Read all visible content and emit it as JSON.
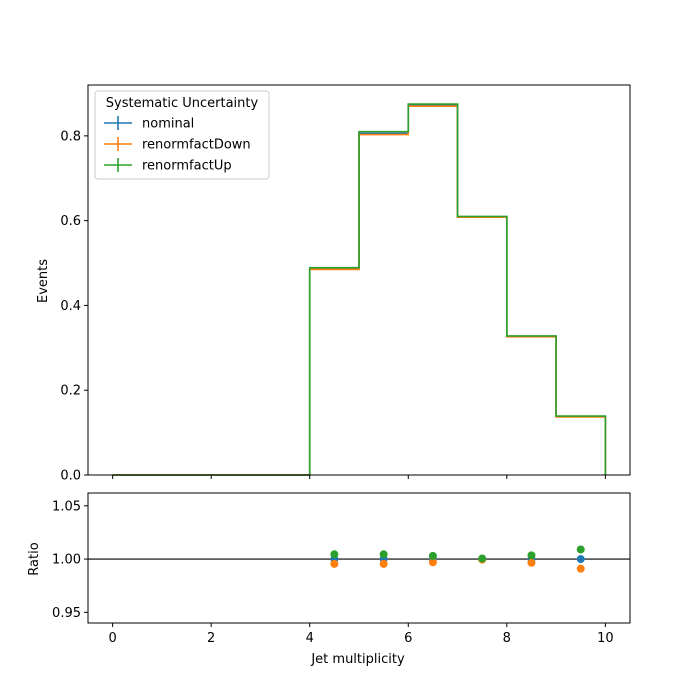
{
  "chart_data": [
    {
      "type": "line",
      "drawstyle": "steps-post",
      "bin_edges": [
        0,
        1,
        2,
        3,
        4,
        5,
        6,
        7,
        8,
        9,
        10
      ],
      "series": [
        {
          "name": "nominal",
          "color": "#1f77b4",
          "values": [
            0,
            0,
            0,
            0,
            0.487,
            0.806,
            0.872,
            0.609,
            0.327,
            0.138
          ]
        },
        {
          "name": "renormfactDown",
          "color": "#ff7f0e",
          "values": [
            0,
            0,
            0,
            0,
            0.485,
            0.803,
            0.87,
            0.608,
            0.326,
            0.137
          ]
        },
        {
          "name": "renormfactUp",
          "color": "#2ca02c",
          "values": [
            0,
            0,
            0,
            0,
            0.489,
            0.81,
            0.875,
            0.61,
            0.328,
            0.139
          ]
        }
      ],
      "ylabel": "Events",
      "xlim": [
        -0.5,
        10.5
      ],
      "ylim": [
        0,
        0.92
      ],
      "yticks": [
        "0.0",
        "0.2",
        "0.4",
        "0.6",
        "0.8"
      ],
      "legend": {
        "title": "Systematic Uncertainty",
        "placement": "upper-left"
      },
      "grid": false
    },
    {
      "type": "scatter",
      "x": [
        4.5,
        5.5,
        6.5,
        7.5,
        8.5,
        9.5
      ],
      "series": [
        {
          "name": "nominal",
          "color": "#1f77b4",
          "values": [
            1.0,
            1.0,
            1.0,
            1.0,
            1.0,
            1.0
          ]
        },
        {
          "name": "renormfactDown",
          "color": "#ff7f0e",
          "values": [
            0.9955,
            0.9955,
            0.997,
            0.9995,
            0.9965,
            0.991
          ]
        },
        {
          "name": "renormfactUp",
          "color": "#2ca02c",
          "values": [
            1.0045,
            1.0045,
            1.003,
            1.0005,
            1.0035,
            1.009
          ]
        }
      ],
      "reference_line": 1.0,
      "xlabel": "Jet multiplicity",
      "ylabel": "Ratio",
      "xlim": [
        -0.5,
        10.5
      ],
      "ylim": [
        0.94,
        1.062
      ],
      "xticks": [
        "0",
        "2",
        "4",
        "6",
        "8",
        "10"
      ],
      "yticks": [
        "0.95",
        "1.00",
        "1.05"
      ],
      "grid": false
    }
  ]
}
